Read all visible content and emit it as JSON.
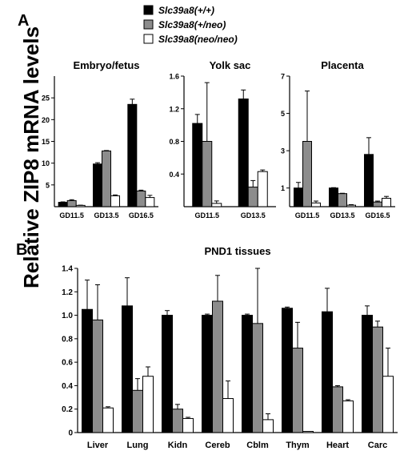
{
  "legend": [
    {
      "label": "Slc39a8(+/+)",
      "color": "#000000"
    },
    {
      "label": "Slc39a8(+/neo)",
      "color": "#8c8c8c"
    },
    {
      "label": "Slc39a8(neo/neo)",
      "color": "#ffffff"
    }
  ],
  "y_axis_label": "Relative ZIP8 mRNA levels",
  "panel_a_letter": "A",
  "panel_b_letter": "B",
  "chart_data": [
    {
      "type": "bar",
      "panel": "A",
      "title": "Embryo/fetus",
      "categories": [
        "GD11.5",
        "GD13.5",
        "GD16.5"
      ],
      "ylim": [
        0,
        30
      ],
      "yticks": [
        5,
        10,
        15,
        20,
        25
      ],
      "ytick_labels": [
        "5",
        "10",
        "15",
        "20",
        "25"
      ],
      "series": [
        {
          "name": "Slc39a8(+/+)",
          "values": [
            1.0,
            9.8,
            23.5
          ],
          "errors": [
            0.1,
            0.3,
            1.2
          ]
        },
        {
          "name": "Slc39a8(+/neo)",
          "values": [
            1.4,
            12.8,
            3.6
          ],
          "errors": [
            0.2,
            0.1,
            0.2
          ]
        },
        {
          "name": "Slc39a8(neo/neo)",
          "values": [
            0.3,
            2.5,
            2.1
          ],
          "errors": [
            0.05,
            0.2,
            0.5
          ]
        }
      ]
    },
    {
      "type": "bar",
      "panel": "A",
      "title": "Yolk sac",
      "categories": [
        "GD11.5",
        "GD13.5"
      ],
      "ylim": [
        0,
        1.6
      ],
      "yticks": [
        0.4,
        0.8,
        1.2,
        1.6
      ],
      "ytick_labels": [
        "0.4",
        "0.8",
        "1.2",
        "1.6"
      ],
      "series": [
        {
          "name": "Slc39a8(+/+)",
          "values": [
            1.02,
            1.32
          ],
          "errors": [
            0.11,
            0.11
          ]
        },
        {
          "name": "Slc39a8(+/neo)",
          "values": [
            0.8,
            0.24
          ],
          "errors": [
            0.72,
            0.08
          ]
        },
        {
          "name": "Slc39a8(neo/neo)",
          "values": [
            0.04,
            0.43
          ],
          "errors": [
            0.03,
            0.02
          ]
        }
      ]
    },
    {
      "type": "bar",
      "panel": "A",
      "title": "Placenta",
      "categories": [
        "GD11.5",
        "GD13.5",
        "GD16.5"
      ],
      "ylim": [
        0,
        7
      ],
      "yticks": [
        1,
        3,
        5,
        7
      ],
      "ytick_labels": [
        "1",
        "3",
        "5",
        "7"
      ],
      "series": [
        {
          "name": "Slc39a8(+/+)",
          "values": [
            1.0,
            1.0,
            2.8
          ],
          "errors": [
            0.3,
            0.02,
            0.9
          ]
        },
        {
          "name": "Slc39a8(+/neo)",
          "values": [
            3.5,
            0.7,
            0.25
          ],
          "errors": [
            2.7,
            0.02,
            0.05
          ]
        },
        {
          "name": "Slc39a8(neo/neo)",
          "values": [
            0.2,
            0.08,
            0.45
          ],
          "errors": [
            0.1,
            0.03,
            0.1
          ]
        }
      ]
    },
    {
      "type": "bar",
      "panel": "B",
      "title": "PND1 tissues",
      "categories": [
        "Liver",
        "Lung",
        "Kidn",
        "Cereb",
        "Cblm",
        "Thym",
        "Heart",
        "Carc"
      ],
      "ylim": [
        0,
        1.4
      ],
      "yticks": [
        0,
        0.2,
        0.4,
        0.6,
        0.8,
        1.0,
        1.2,
        1.4
      ],
      "ytick_labels": [
        "0",
        "0.2",
        "0.4",
        "0.6",
        "0.8",
        "1.0",
        "1.2",
        "1.4"
      ],
      "series": [
        {
          "name": "Slc39a8(+/+)",
          "values": [
            1.05,
            1.08,
            1.0,
            1.0,
            1.0,
            1.06,
            1.03,
            1.0
          ],
          "errors": [
            0.25,
            0.24,
            0.04,
            0.01,
            0.01,
            0.01,
            0.2,
            0.08
          ]
        },
        {
          "name": "Slc39a8(+/neo)",
          "values": [
            0.96,
            0.36,
            0.2,
            1.12,
            0.93,
            0.72,
            0.39,
            0.9
          ],
          "errors": [
            0.3,
            0.1,
            0.04,
            0.22,
            0.47,
            0.22,
            0.01,
            0.05
          ]
        },
        {
          "name": "Slc39a8(neo/neo)",
          "values": [
            0.21,
            0.48,
            0.12,
            0.29,
            0.11,
            0.01,
            0.27,
            0.48
          ],
          "errors": [
            0.01,
            0.08,
            0.01,
            0.15,
            0.05,
            0.0,
            0.01,
            0.24
          ]
        }
      ]
    }
  ]
}
